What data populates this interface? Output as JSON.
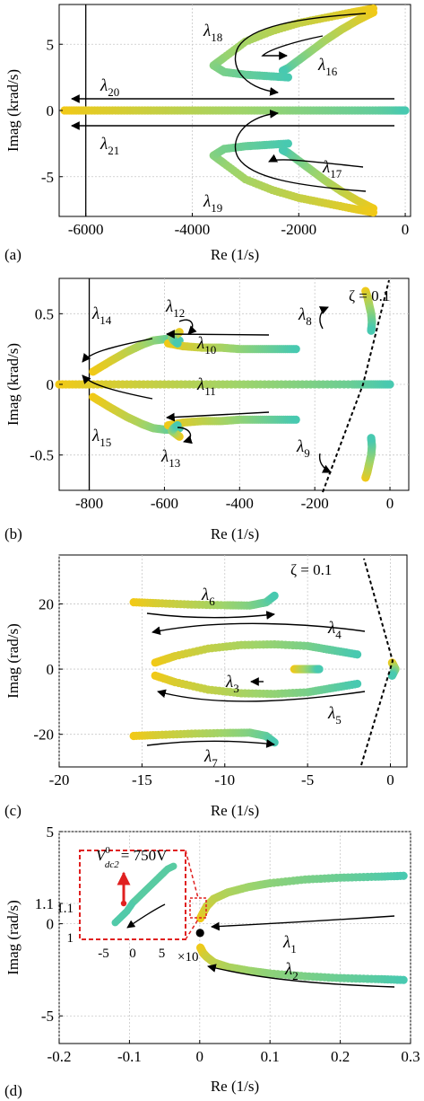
{
  "colors": {
    "root_start": "#48c9b0",
    "root_mid": "#9fd46a",
    "root_end": "#f2c916",
    "grid": "#c8c8c8",
    "axis": "#000000",
    "highlight_box": "#e02020",
    "highlight_arrow": "#e02020"
  },
  "panels": [
    {
      "label": "(a)",
      "xlabel": "Re (1/s)",
      "ylabel": "Imag (krad/s)"
    },
    {
      "label": "(b)",
      "xlabel": "Re (1/s)",
      "ylabel": "Imag (krad/s)",
      "zeta_label": "ζ = 0.1"
    },
    {
      "label": "(c)",
      "xlabel": "Re (1/s)",
      "ylabel": "Imag (rad/s)",
      "zeta_label": "ζ = 0.1"
    },
    {
      "label": "(d)",
      "xlabel": "Re (1/s)",
      "ylabel": "Imag (rad/s)",
      "inset_value": "= 750V",
      "inset_var": "V",
      "inset_sup": "0",
      "inset_sub": "dc2",
      "inset_x10": "×10"
    }
  ],
  "chart_data": [
    {
      "type": "scatter",
      "xlim": [
        -6500,
        100
      ],
      "ylim": [
        -8,
        8
      ],
      "xticks": [
        -6000,
        -4000,
        -2000,
        0
      ],
      "xtick_labels": [
        "-6000",
        "-4000",
        "-2000",
        "0"
      ],
      "yticks": [
        -5,
        0,
        5
      ],
      "ytick_labels": [
        "-5",
        "0",
        "5"
      ],
      "grid": true,
      "vertical_line_x": -6000,
      "series": [
        {
          "name": "λ16",
          "x": [
            -600,
            -900,
            -1200,
            -1500,
            -1800,
            -2000,
            -2200,
            -2300
          ],
          "y": [
            7.4,
            6.8,
            6.1,
            5.3,
            4.4,
            3.8,
            3.2,
            3.0
          ]
        },
        {
          "name": "λ18",
          "x": [
            -600,
            -1000,
            -1500,
            -2000,
            -2500,
            -3000,
            -3400,
            -3600,
            -3400,
            -3000,
            -2600,
            -2200
          ],
          "y": [
            7.7,
            7.4,
            7.0,
            6.6,
            6.0,
            5.2,
            4.0,
            3.4,
            2.9,
            2.7,
            2.6,
            2.5
          ]
        },
        {
          "name": "λ17",
          "x": [
            -600,
            -900,
            -1200,
            -1500,
            -1800,
            -2000,
            -2200,
            -2300
          ],
          "y": [
            -7.4,
            -6.8,
            -6.1,
            -5.3,
            -4.4,
            -3.8,
            -3.2,
            -3.0
          ]
        },
        {
          "name": "λ19",
          "x": [
            -600,
            -1000,
            -1500,
            -2000,
            -2500,
            -3000,
            -3400,
            -3600,
            -3400,
            -3000,
            -2600,
            -2200
          ],
          "y": [
            -7.7,
            -7.4,
            -7.0,
            -6.6,
            -6.0,
            -5.2,
            -4.0,
            -3.4,
            -2.9,
            -2.7,
            -2.6,
            -2.5
          ]
        },
        {
          "name": "λ20/λ21",
          "x": [
            -6400,
            -6000,
            -5500,
            -5000,
            -4500,
            -4000,
            -3500,
            -3000,
            -2500,
            -2000,
            -1500,
            -1000,
            -500,
            -200,
            0
          ],
          "y": [
            0,
            0,
            0,
            0,
            0,
            0,
            0,
            0,
            0,
            0,
            0,
            0,
            0,
            0,
            0
          ]
        }
      ],
      "annotations": [
        {
          "text": "λ",
          "sub": "18"
        },
        {
          "text": "λ",
          "sub": "16"
        },
        {
          "text": "λ",
          "sub": "20"
        },
        {
          "text": "λ",
          "sub": "21"
        },
        {
          "text": "λ",
          "sub": "17"
        },
        {
          "text": "λ",
          "sub": "19"
        }
      ]
    },
    {
      "type": "scatter",
      "xlim": [
        -880,
        50
      ],
      "ylim": [
        -0.75,
        0.75
      ],
      "xticks": [
        -800,
        -600,
        -400,
        -200,
        0
      ],
      "xtick_labels": [
        "-800",
        "-600",
        "-400",
        "-200",
        "0"
      ],
      "yticks": [
        -0.5,
        0,
        0.5
      ],
      "ytick_labels": [
        "-0.5",
        "0",
        "0.5"
      ],
      "grid": true,
      "vertical_line_x": -800,
      "series": [
        {
          "name": "λ14",
          "x": [
            -790,
            -740,
            -700,
            -660,
            -630,
            -600,
            -580,
            -560
          ],
          "y": [
            0.09,
            0.17,
            0.23,
            0.28,
            0.31,
            0.32,
            0.32,
            0.31
          ]
        },
        {
          "name": "λ10",
          "x": [
            -590,
            -550,
            -500,
            -450,
            -400,
            -350,
            -300,
            -250
          ],
          "y": [
            0.29,
            0.27,
            0.26,
            0.26,
            0.25,
            0.25,
            0.25,
            0.25
          ]
        },
        {
          "name": "λ12",
          "x": [
            -560,
            -570,
            -580,
            -575,
            -565
          ],
          "y": [
            0.37,
            0.35,
            0.33,
            0.31,
            0.29
          ]
        },
        {
          "name": "λ15",
          "x": [
            -790,
            -740,
            -700,
            -660,
            -630,
            -600,
            -580,
            -560
          ],
          "y": [
            -0.09,
            -0.17,
            -0.23,
            -0.28,
            -0.31,
            -0.32,
            -0.32,
            -0.31
          ]
        },
        {
          "name": "λ11",
          "x": [
            -590,
            -550,
            -500,
            -450,
            -400,
            -350,
            -300,
            -250
          ],
          "y": [
            -0.29,
            -0.27,
            -0.26,
            -0.26,
            -0.25,
            -0.25,
            -0.25,
            -0.25
          ]
        },
        {
          "name": "λ13",
          "x": [
            -560,
            -570,
            -580,
            -575,
            -565
          ],
          "y": [
            -0.37,
            -0.35,
            -0.33,
            -0.31,
            -0.29
          ]
        },
        {
          "name": "λ8",
          "x": [
            -65,
            -60,
            -55,
            -50,
            -48,
            -50
          ],
          "y": [
            0.66,
            0.62,
            0.56,
            0.5,
            0.44,
            0.38
          ]
        },
        {
          "name": "λ9",
          "x": [
            -65,
            -60,
            -55,
            -50,
            -48,
            -50
          ],
          "y": [
            -0.66,
            -0.62,
            -0.56,
            -0.5,
            -0.44,
            -0.38
          ]
        },
        {
          "name": "real-axis",
          "x": [
            -880,
            -800,
            -700,
            -600,
            -500,
            -400,
            -300,
            -200,
            -100,
            -50,
            0
          ],
          "y": [
            0,
            0,
            0,
            0,
            0,
            0,
            0,
            0,
            0,
            0,
            0
          ]
        }
      ],
      "annotations": [
        {
          "text": "λ",
          "sub": "14"
        },
        {
          "text": "λ",
          "sub": "12"
        },
        {
          "text": "λ",
          "sub": "10"
        },
        {
          "text": "λ",
          "sub": "11"
        },
        {
          "text": "λ",
          "sub": "15"
        },
        {
          "text": "λ",
          "sub": "13"
        },
        {
          "text": "λ",
          "sub": "8"
        },
        {
          "text": "λ",
          "sub": "9"
        }
      ]
    },
    {
      "type": "scatter",
      "xlim": [
        -20,
        1
      ],
      "ylim": [
        -30,
        35
      ],
      "xticks": [
        -20,
        -15,
        -10,
        -5,
        0
      ],
      "xtick_labels": [
        "-20",
        "-15",
        "-10",
        "-5",
        "0"
      ],
      "yticks": [
        -20,
        0,
        20
      ],
      "ytick_labels": [
        "-20",
        "0",
        "20"
      ],
      "grid": true,
      "series": [
        {
          "name": "λ6",
          "x": [
            -15.5,
            -14,
            -12,
            -10,
            -8.5,
            -7.5,
            -7
          ],
          "y": [
            20.5,
            20.2,
            19.8,
            19.6,
            19.5,
            20.5,
            22.5
          ]
        },
        {
          "name": "λ7",
          "x": [
            -15.5,
            -14,
            -12,
            -10,
            -8.5,
            -7.5,
            -7
          ],
          "y": [
            -20.5,
            -20.2,
            -19.8,
            -19.6,
            -19.5,
            -20.5,
            -22.5
          ]
        },
        {
          "name": "λ4",
          "x": [
            -14.2,
            -13,
            -11,
            -9,
            -7,
            -5,
            -3.5,
            -2
          ],
          "y": [
            2,
            4,
            6.3,
            7.4,
            7.6,
            7.1,
            5.8,
            4.5
          ]
        },
        {
          "name": "λ5",
          "x": [
            -14.2,
            -13,
            -11,
            -9,
            -7,
            -5,
            -3.5,
            -2
          ],
          "y": [
            -2,
            -4,
            -6.3,
            -7.4,
            -7.6,
            -7.1,
            -5.8,
            -4.5
          ]
        },
        {
          "name": "λ3",
          "x": [
            -5.8,
            -5.4,
            -5.0,
            -4.6,
            -4.3
          ],
          "y": [
            0,
            0,
            0,
            0,
            0
          ]
        },
        {
          "name": "near-origin",
          "x": [
            0.1,
            0.2,
            0.3,
            0.2,
            0.1
          ],
          "y": [
            2,
            1,
            0,
            -1,
            -2
          ]
        }
      ],
      "annotations": [
        {
          "text": "λ",
          "sub": "6"
        },
        {
          "text": "λ",
          "sub": "4"
        },
        {
          "text": "λ",
          "sub": "3"
        },
        {
          "text": "λ",
          "sub": "5"
        },
        {
          "text": "λ",
          "sub": "7"
        }
      ]
    },
    {
      "type": "scatter",
      "xlim": [
        -0.2,
        0.3
      ],
      "ylim": [
        -6.5,
        5
      ],
      "xticks": [
        -0.2,
        -0.1,
        0,
        0.1,
        0.2,
        0.3
      ],
      "xtick_labels": [
        "-0.2",
        "-0.1",
        "0",
        "0.1",
        "0.2",
        "0.3"
      ],
      "yticks": [
        -5,
        0,
        1.1,
        5
      ],
      "ytick_labels": [
        "-5",
        "0",
        "1.1",
        "5"
      ],
      "grid": true,
      "series": [
        {
          "name": "λ1",
          "x": [
            0.001,
            0.005,
            0.01,
            0.02,
            0.04,
            0.07,
            0.1,
            0.15,
            0.2,
            0.25,
            0.29
          ],
          "y": [
            0.3,
            0.6,
            0.95,
            1.35,
            1.7,
            2.0,
            2.2,
            2.4,
            2.5,
            2.55,
            2.6
          ]
        },
        {
          "name": "λ2",
          "x": [
            0.001,
            0.005,
            0.01,
            0.02,
            0.04,
            0.07,
            0.1,
            0.15,
            0.2,
            0.25,
            0.29
          ],
          "y": [
            -1.3,
            -1.6,
            -1.8,
            -2.1,
            -2.35,
            -2.55,
            -2.7,
            -2.85,
            -2.95,
            -3.0,
            -3.05
          ]
        },
        {
          "name": "origin",
          "x": [
            0.0005
          ],
          "y": [
            -0.5
          ]
        }
      ],
      "annotations": [
        {
          "text": "λ",
          "sub": "1"
        },
        {
          "text": "λ",
          "sub": "2"
        }
      ],
      "inset": {
        "xticks": [
          -5,
          0,
          5
        ],
        "xtick_labels": [
          "-5",
          "0",
          "5"
        ],
        "ytick_labels": [
          "1",
          "1.1"
        ],
        "series": {
          "x": [
            -3,
            -2,
            -1,
            0,
            1,
            2,
            3,
            4,
            5,
            6,
            7
          ],
          "y": [
            1.0,
            1.01,
            1.02,
            1.035,
            1.045,
            1.055,
            1.065,
            1.075,
            1.085,
            1.095,
            1.1
          ]
        }
      }
    }
  ]
}
